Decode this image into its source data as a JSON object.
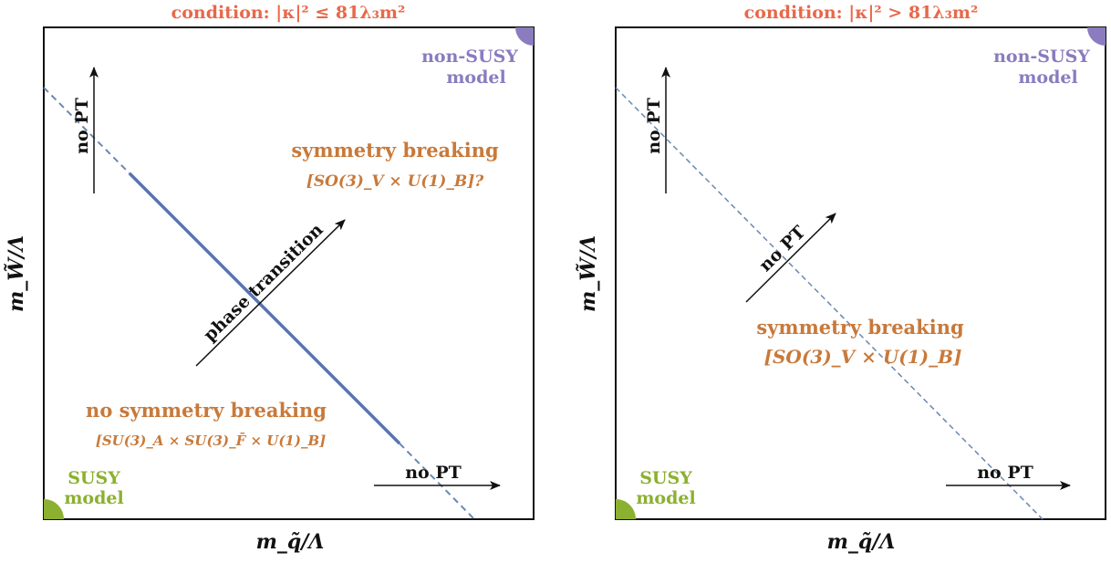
{
  "left_panel": {
    "title": "condition: |κ|² ≤ 81λ₃m²",
    "x_axis_label": "m_q̃/Λ",
    "y_axis_label": "m_W̃/Λ",
    "corner_top_right": [
      "non-SUSY",
      "model"
    ],
    "corner_bottom_left": [
      "SUSY",
      "model"
    ],
    "region_upper": {
      "title": "symmetry breaking",
      "group": "[SO(3)_V × U(1)_B]?"
    },
    "region_lower": {
      "title": "no symmetry breaking",
      "group": "[SU(3)_A × SU(3)_F̄ × U(1)_B]"
    },
    "arrow_vertical_label": "no PT",
    "arrow_horizontal_label": "no PT",
    "arrow_diagonal_label": "phase transition"
  },
  "right_panel": {
    "title": "condition: |κ|² > 81λ₃m²",
    "x_axis_label": "m_q̃/Λ",
    "y_axis_label": "m_W̃/Λ",
    "corner_top_right": [
      "non-SUSY",
      "model"
    ],
    "corner_bottom_left": [
      "SUSY",
      "model"
    ],
    "region": {
      "title": "symmetry breaking",
      "group": "[SO(3)_V × U(1)_B]"
    },
    "arrow_vertical_label": "no PT",
    "arrow_horizontal_label": "no PT",
    "arrow_diagonal_label": "no PT"
  },
  "colors": {
    "title": "#e8684a",
    "region_text": "#c8793a",
    "susy": "#8cb030",
    "non_susy": "#8a7cbf",
    "transition_line": "#5875b0",
    "dashed_line": "#6a88b0"
  }
}
